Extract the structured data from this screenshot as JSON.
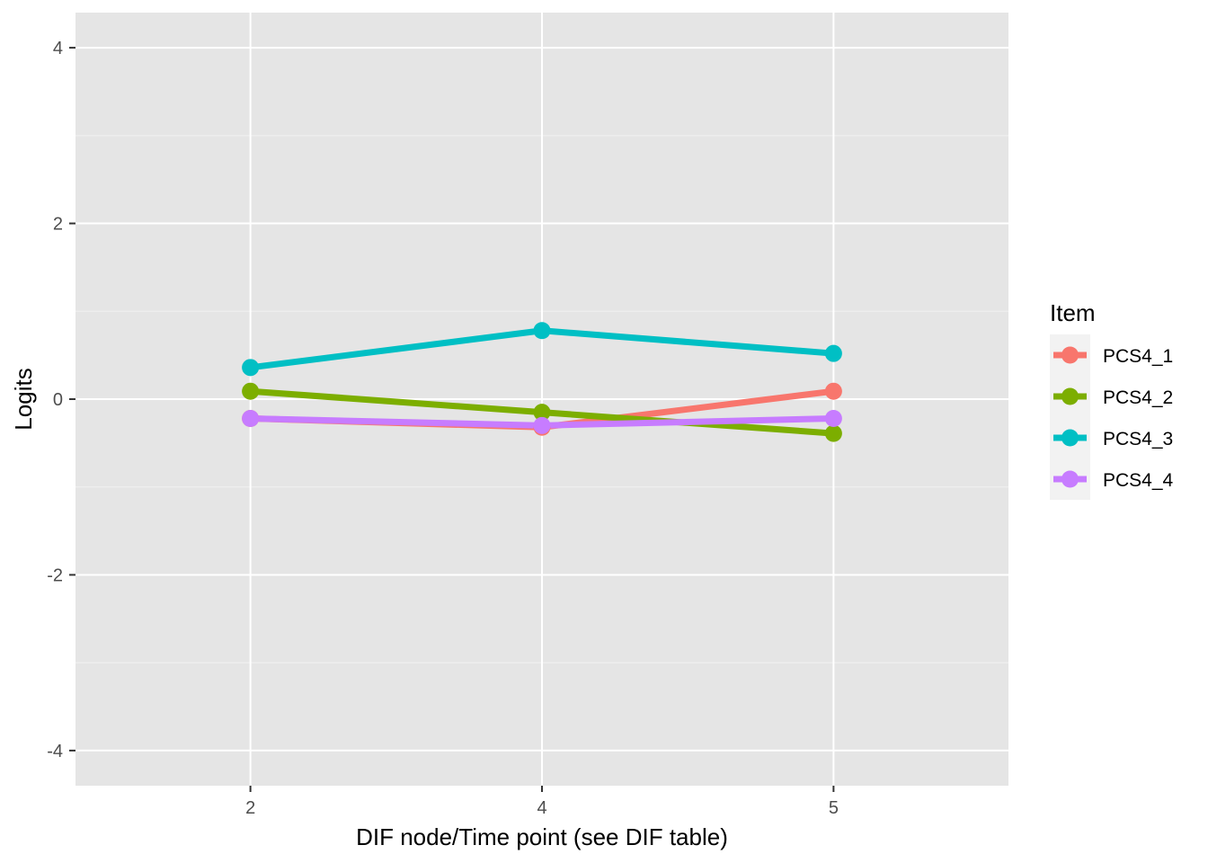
{
  "chart_data": {
    "type": "line",
    "title": "",
    "xlabel": "DIF node/Time point (see DIF table)",
    "ylabel": "Logits",
    "categories": [
      "2",
      "4",
      "5"
    ],
    "yticks": [
      4,
      2,
      0,
      -2,
      -4
    ],
    "ytick_labels": [
      "4",
      "2",
      "0",
      "-2",
      "-4"
    ],
    "ylim": [
      -4.4,
      4.4
    ],
    "grid": true,
    "legend": {
      "title": "Item",
      "position": "right"
    },
    "series": [
      {
        "name": "PCS4_1",
        "color": "#F8766D",
        "values": [
          -0.22,
          -0.32,
          0.09
        ]
      },
      {
        "name": "PCS4_2",
        "color": "#7CAE00",
        "values": [
          0.09,
          -0.15,
          -0.39
        ]
      },
      {
        "name": "PCS4_3",
        "color": "#00BFC4",
        "values": [
          0.36,
          0.78,
          0.52
        ]
      },
      {
        "name": "PCS4_4",
        "color": "#C77CFF",
        "values": [
          -0.22,
          -0.3,
          -0.22
        ]
      }
    ]
  }
}
